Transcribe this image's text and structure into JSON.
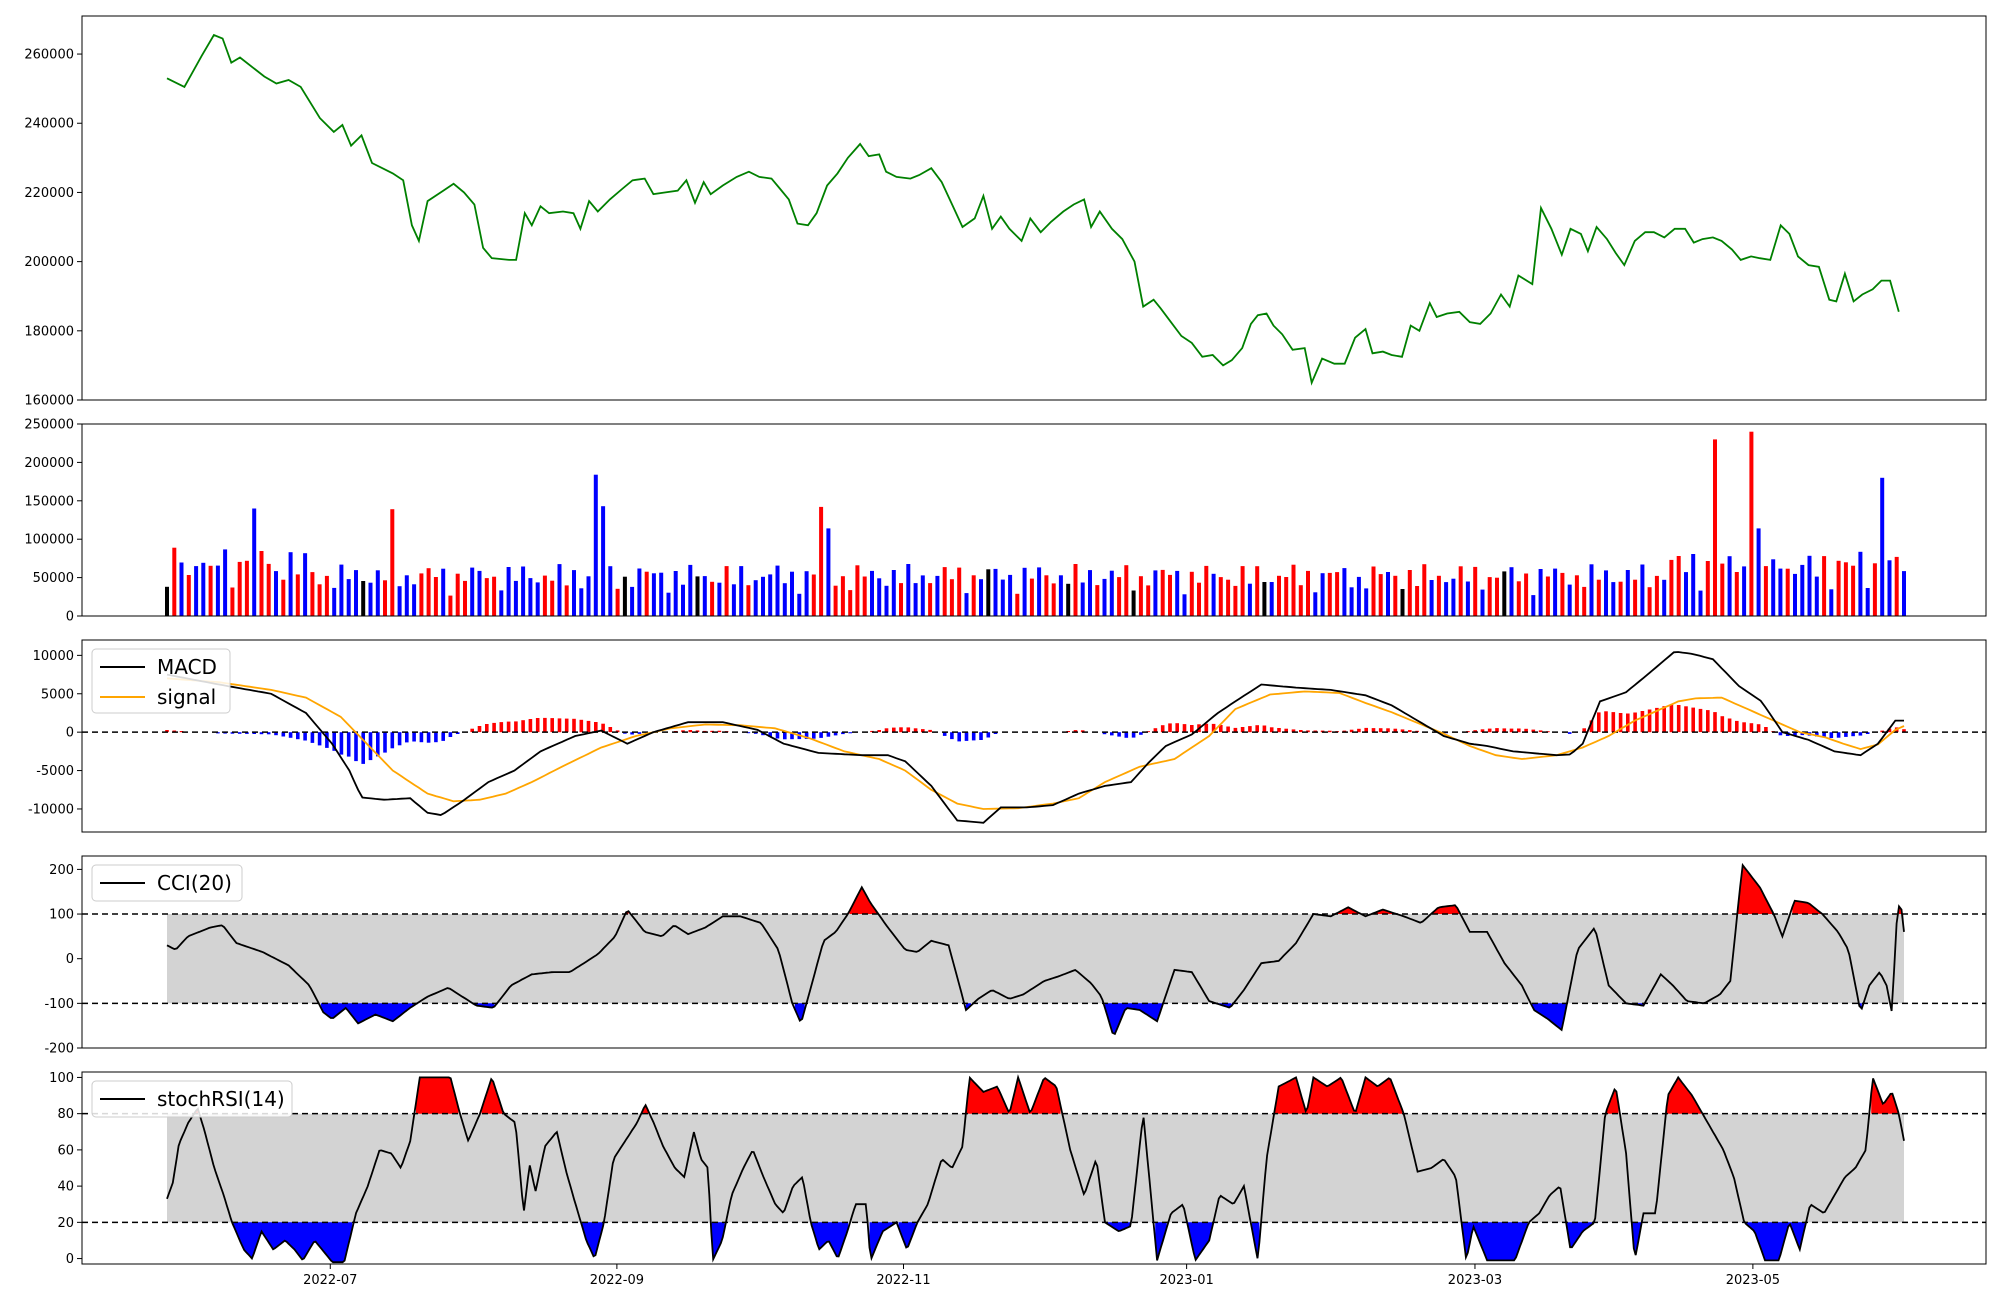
{
  "colors": {
    "price": "#008000",
    "vol_up": "#ff0000",
    "vol_down": "#0000ff",
    "vol_flat": "#000000",
    "macd": "#000000",
    "signal": "#ffa500",
    "hist_pos": "#ff0000",
    "hist_neg": "#0000ff",
    "band": "#d3d3d3",
    "over": "#ff0000",
    "under": "#0000ff"
  },
  "chart_data": [
    {
      "type": "line",
      "x_range": [
        "2022-05-27",
        "2023-05-26"
      ],
      "x_tick_labels": [
        "2022-07",
        "2022-09",
        "2022-11",
        "2023-01",
        "2023-03",
        "2023-05"
      ],
      "y_ticks": [
        160000,
        180000,
        200000,
        220000,
        240000,
        260000
      ],
      "ylim": [
        160000,
        271000
      ],
      "series": [
        {
          "values": [
            [
              0.0,
              253000
            ],
            [
              0.01,
              250500
            ],
            [
              0.02,
              259500
            ],
            [
              0.027,
              265500
            ],
            [
              0.032,
              264500
            ],
            [
              0.037,
              257500
            ],
            [
              0.042,
              259000
            ],
            [
              0.056,
              253500
            ],
            [
              0.063,
              251500
            ],
            [
              0.07,
              252500
            ],
            [
              0.077,
              250500
            ],
            [
              0.088,
              241500
            ],
            [
              0.096,
              237500
            ],
            [
              0.101,
              239500
            ],
            [
              0.106,
              233500
            ],
            [
              0.112,
              236500
            ],
            [
              0.118,
              228500
            ],
            [
              0.13,
              225500
            ],
            [
              0.136,
              223500
            ],
            [
              0.141,
              210500
            ],
            [
              0.145,
              206000
            ],
            [
              0.15,
              217500
            ],
            [
              0.159,
              220500
            ],
            [
              0.165,
              222500
            ],
            [
              0.171,
              220000
            ],
            [
              0.177,
              216500
            ],
            [
              0.182,
              204000
            ],
            [
              0.187,
              201000
            ],
            [
              0.197,
              200500
            ],
            [
              0.201,
              200500
            ],
            [
              0.206,
              214000
            ],
            [
              0.21,
              210500
            ],
            [
              0.215,
              216000
            ],
            [
              0.22,
              214000
            ],
            [
              0.228,
              214500
            ],
            [
              0.234,
              214000
            ],
            [
              0.238,
              209500
            ],
            [
              0.243,
              217500
            ],
            [
              0.248,
              214500
            ],
            [
              0.255,
              218000
            ],
            [
              0.262,
              221000
            ],
            [
              0.268,
              223500
            ],
            [
              0.275,
              224000
            ],
            [
              0.28,
              219500
            ],
            [
              0.287,
              220000
            ],
            [
              0.294,
              220500
            ],
            [
              0.299,
              223500
            ],
            [
              0.304,
              217000
            ],
            [
              0.309,
              223000
            ],
            [
              0.313,
              219500
            ],
            [
              0.32,
              222000
            ],
            [
              0.328,
              224500
            ],
            [
              0.335,
              226000
            ],
            [
              0.341,
              224500
            ],
            [
              0.348,
              224000
            ],
            [
              0.353,
              221000
            ],
            [
              0.358,
              218000
            ],
            [
              0.363,
              211000
            ],
            [
              0.369,
              210500
            ],
            [
              0.374,
              214000
            ],
            [
              0.38,
              222000
            ],
            [
              0.386,
              225500
            ],
            [
              0.392,
              230000
            ],
            [
              0.399,
              234000
            ],
            [
              0.404,
              230500
            ],
            [
              0.41,
              231000
            ],
            [
              0.414,
              226000
            ],
            [
              0.42,
              224500
            ],
            [
              0.428,
              224000
            ],
            [
              0.433,
              225000
            ],
            [
              0.44,
              227000
            ],
            [
              0.446,
              223000
            ],
            [
              0.452,
              216500
            ],
            [
              0.458,
              210000
            ],
            [
              0.465,
              212500
            ],
            [
              0.47,
              219000
            ],
            [
              0.475,
              209500
            ],
            [
              0.48,
              213000
            ],
            [
              0.485,
              209500
            ],
            [
              0.492,
              206000
            ],
            [
              0.497,
              212500
            ],
            [
              0.503,
              208500
            ],
            [
              0.509,
              211500
            ],
            [
              0.516,
              214500
            ],
            [
              0.522,
              216500
            ],
            [
              0.528,
              218000
            ],
            [
              0.532,
              210000
            ],
            [
              0.537,
              214500
            ],
            [
              0.544,
              209500
            ],
            [
              0.55,
              206500
            ],
            [
              0.557,
              200000
            ],
            [
              0.562,
              187000
            ],
            [
              0.568,
              189000
            ],
            [
              0.572,
              186500
            ],
            [
              0.578,
              182500
            ],
            [
              0.584,
              178500
            ],
            [
              0.59,
              176500
            ],
            [
              0.596,
              172500
            ],
            [
              0.602,
              173000
            ],
            [
              0.608,
              170000
            ],
            [
              0.613,
              171500
            ],
            [
              0.619,
              175000
            ],
            [
              0.624,
              182000
            ],
            [
              0.628,
              184500
            ],
            [
              0.633,
              185000
            ],
            [
              0.637,
              181500
            ],
            [
              0.642,
              179000
            ],
            [
              0.648,
              174500
            ],
            [
              0.655,
              175000
            ],
            [
              0.659,
              165000
            ],
            [
              0.665,
              172000
            ],
            [
              0.672,
              170500
            ],
            [
              0.678,
              170500
            ],
            [
              0.684,
              178000
            ],
            [
              0.69,
              180500
            ],
            [
              0.694,
              173500
            ],
            [
              0.7,
              174000
            ],
            [
              0.705,
              173000
            ],
            [
              0.711,
              172500
            ],
            [
              0.716,
              181500
            ],
            [
              0.721,
              180000
            ],
            [
              0.727,
              188000
            ],
            [
              0.731,
              184000
            ],
            [
              0.737,
              185000
            ],
            [
              0.744,
              185500
            ],
            [
              0.75,
              182500
            ],
            [
              0.756,
              182000
            ],
            [
              0.762,
              185000
            ],
            [
              0.768,
              190500
            ],
            [
              0.773,
              187000
            ],
            [
              0.778,
              196000
            ],
            [
              0.786,
              193500
            ],
            [
              0.791,
              215500
            ],
            [
              0.797,
              209500
            ],
            [
              0.803,
              202000
            ],
            [
              0.808,
              209500
            ],
            [
              0.814,
              208000
            ],
            [
              0.818,
              203000
            ],
            [
              0.823,
              210000
            ],
            [
              0.829,
              206500
            ],
            [
              0.834,
              202500
            ],
            [
              0.839,
              199000
            ],
            [
              0.845,
              206000
            ],
            [
              0.851,
              208500
            ],
            [
              0.856,
              208500
            ],
            [
              0.862,
              207000
            ],
            [
              0.868,
              209500
            ],
            [
              0.874,
              209500
            ],
            [
              0.879,
              205500
            ],
            [
              0.884,
              206500
            ],
            [
              0.89,
              207000
            ],
            [
              0.895,
              206000
            ],
            [
              0.901,
              203500
            ],
            [
              0.906,
              200500
            ],
            [
              0.912,
              201500
            ],
            [
              0.917,
              201000
            ],
            [
              0.923,
              200500
            ],
            [
              0.929,
              210500
            ],
            [
              0.934,
              208000
            ],
            [
              0.939,
              201500
            ],
            [
              0.945,
              199000
            ],
            [
              0.951,
              198500
            ],
            [
              0.957,
              189000
            ],
            [
              0.961,
              188500
            ],
            [
              0.966,
              196500
            ],
            [
              0.971,
              188500
            ],
            [
              0.976,
              190500
            ],
            [
              0.982,
              192000
            ],
            [
              0.987,
              194500
            ],
            [
              0.992,
              194500
            ],
            [
              0.997,
              185500
            ]
          ]
        }
      ]
    },
    {
      "type": "bar",
      "y_ticks": [
        0,
        50000,
        100000,
        150000,
        200000,
        250000
      ],
      "ylim": [
        0,
        250000
      ]
    },
    {
      "type": "line",
      "y_ticks": [
        -10000,
        -5000,
        0,
        5000,
        10000
      ],
      "ylim": [
        -13000,
        12000
      ],
      "reference_lines": [
        0
      ],
      "legend": [
        "MACD",
        "signal"
      ],
      "legend_position": "upper-left"
    },
    {
      "type": "area",
      "y_ticks": [
        -200,
        -100,
        0,
        100,
        200
      ],
      "ylim": [
        -200,
        230
      ],
      "band": [
        -100,
        100
      ],
      "reference_lines": [
        -100,
        100
      ],
      "legend": [
        "CCI(20)"
      ],
      "legend_position": "upper-left"
    },
    {
      "type": "area",
      "y_ticks": [
        0,
        20,
        40,
        60,
        80,
        100
      ],
      "ylim": [
        -3,
        103
      ],
      "band": [
        20,
        80
      ],
      "reference_lines": [
        20,
        80
      ],
      "legend": [
        "stochRSI(14)"
      ],
      "legend_position": "upper-left"
    }
  ]
}
